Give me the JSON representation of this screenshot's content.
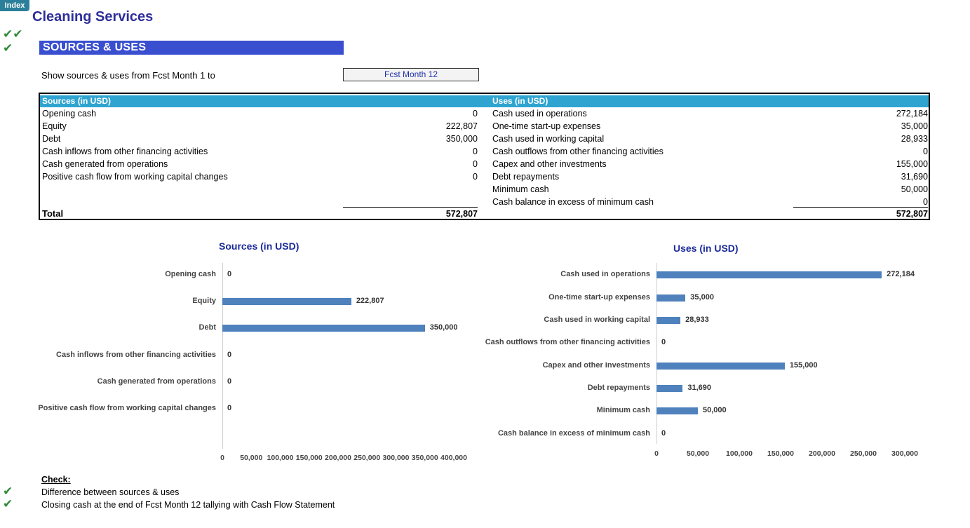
{
  "index_tab": "Index",
  "app_title": "Cleaning Services",
  "section_title": "SOURCES & USES",
  "filter": {
    "label": "Show sources & uses from Fcst Month 1 to",
    "value": "Fcst Month 12"
  },
  "sources": {
    "header": "Sources (in USD)",
    "rows": [
      {
        "label": "Opening cash",
        "value": "0"
      },
      {
        "label": "Equity",
        "value": "222,807"
      },
      {
        "label": "Debt",
        "value": "350,000"
      },
      {
        "label": "Cash inflows from other financing activities",
        "value": "0"
      },
      {
        "label": "Cash generated from operations",
        "value": "0"
      },
      {
        "label": "Positive cash flow from working capital changes",
        "value": "0"
      }
    ],
    "total_label": "Total",
    "total_value": "572,807"
  },
  "uses": {
    "header": "Uses (in USD)",
    "rows": [
      {
        "label": "Cash used in operations",
        "value": "272,184"
      },
      {
        "label": "One-time start-up expenses",
        "value": "35,000"
      },
      {
        "label": "Cash used in working capital",
        "value": "28,933"
      },
      {
        "label": "Cash outflows from other  financing activities",
        "value": "0"
      },
      {
        "label": "Capex and other investments",
        "value": "155,000"
      },
      {
        "label": "Debt repayments",
        "value": "31,690"
      },
      {
        "label": "Minimum cash",
        "value": "50,000"
      },
      {
        "label": "Cash balance in excess of minimum cash",
        "value": "0"
      }
    ],
    "total_value": "572,807"
  },
  "chart_data": [
    {
      "type": "bar",
      "orientation": "horizontal",
      "title": "Sources (in USD)",
      "categories": [
        "Opening cash",
        "Equity",
        "Debt",
        "Cash inflows from other financing activities",
        "Cash generated from operations",
        "Positive cash flow from working capital changes"
      ],
      "values": [
        0,
        222807,
        350000,
        0,
        0,
        0
      ],
      "value_labels": [
        "0",
        "222,807",
        "350,000",
        "0",
        "0",
        "0"
      ],
      "xlim": [
        0,
        400000
      ],
      "ticks": [
        "0",
        "50,000",
        "100,000",
        "150,000",
        "200,000",
        "250,000",
        "300,000",
        "350,000",
        "400,000"
      ],
      "color": "#4f81bd"
    },
    {
      "type": "bar",
      "orientation": "horizontal",
      "title": "Uses (in USD)",
      "categories": [
        "Cash used in operations",
        "One-time start-up expenses",
        "Cash used in working capital",
        "Cash outflows from other  financing activities",
        "Capex and other investments",
        "Debt repayments",
        "Minimum cash",
        "Cash balance in excess of minimum cash"
      ],
      "values": [
        272184,
        35000,
        28933,
        0,
        155000,
        31690,
        50000,
        0
      ],
      "value_labels": [
        "272,184",
        "35,000",
        "28,933",
        "0",
        "155,000",
        "31,690",
        "50,000",
        "0"
      ],
      "xlim": [
        0,
        300000
      ],
      "ticks": [
        "0",
        "50,000",
        "100,000",
        "150,000",
        "200,000",
        "250,000",
        "300,000"
      ],
      "color": "#4f81bd"
    }
  ],
  "check": {
    "heading": "Check:",
    "items": [
      "Difference between sources & uses",
      "Closing cash at the end of Fcst Month 12 tallying with Cash Flow Statement"
    ]
  }
}
